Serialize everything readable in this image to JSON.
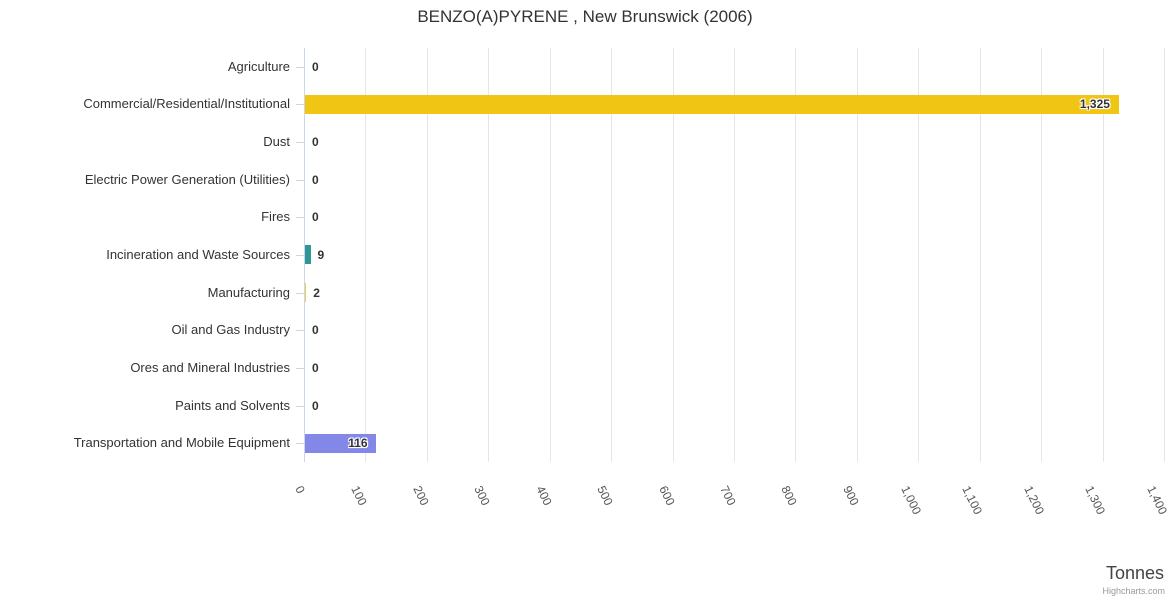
{
  "title": "BENZO(A)PYRENE , New Brunswick (2006)",
  "credits": "Highcharts.com",
  "chart_data": {
    "type": "bar",
    "orientation": "horizontal",
    "title": "BENZO(A)PYRENE , New Brunswick (2006)",
    "categories": [
      "Agriculture",
      "Commercial/Residential/Institutional",
      "Dust",
      "Electric Power Generation (Utilities)",
      "Fires",
      "Incineration and Waste Sources",
      "Manufacturing",
      "Oil and Gas Industry",
      "Ores and Mineral Industries",
      "Paints and Solvents",
      "Transportation and Mobile Equipment"
    ],
    "values": [
      0,
      1325,
      0,
      0,
      0,
      9,
      2,
      0,
      0,
      0,
      116
    ],
    "value_labels": [
      "0",
      "1,325",
      "0",
      "0",
      "0",
      "9",
      "2",
      "0",
      "0",
      "0",
      "116"
    ],
    "xlabel": "Tonnes",
    "ylabel": "",
    "xlim": [
      0,
      1400
    ],
    "x_ticks": [
      0,
      100,
      200,
      300,
      400,
      500,
      600,
      700,
      800,
      900,
      1000,
      1100,
      1200,
      1300,
      1400
    ],
    "x_tick_labels": [
      "0",
      "100",
      "200",
      "300",
      "400",
      "500",
      "600",
      "700",
      "800",
      "900",
      "1,000",
      "1,100",
      "1,200",
      "1,300",
      "1,400"
    ],
    "grid": true,
    "legend": "none",
    "bar_colors": [
      "#7cb5ec",
      "#f0c514",
      "#90ed7d",
      "#f7a35c",
      "#8085e9",
      "#2e9696",
      "#e4d354",
      "#8d4653",
      "#91e8e1",
      "#f15c80",
      "#8388e8"
    ],
    "colors": {
      "grid_line": "#e6e6e6",
      "axis_line": "#ccd6eb",
      "title_text": "#333333",
      "tick_label_text": "#555555",
      "data_label_text": "#333333",
      "category_label_text": "#333333",
      "axis_title_text": "#444444",
      "credits_text": "#999999"
    }
  }
}
